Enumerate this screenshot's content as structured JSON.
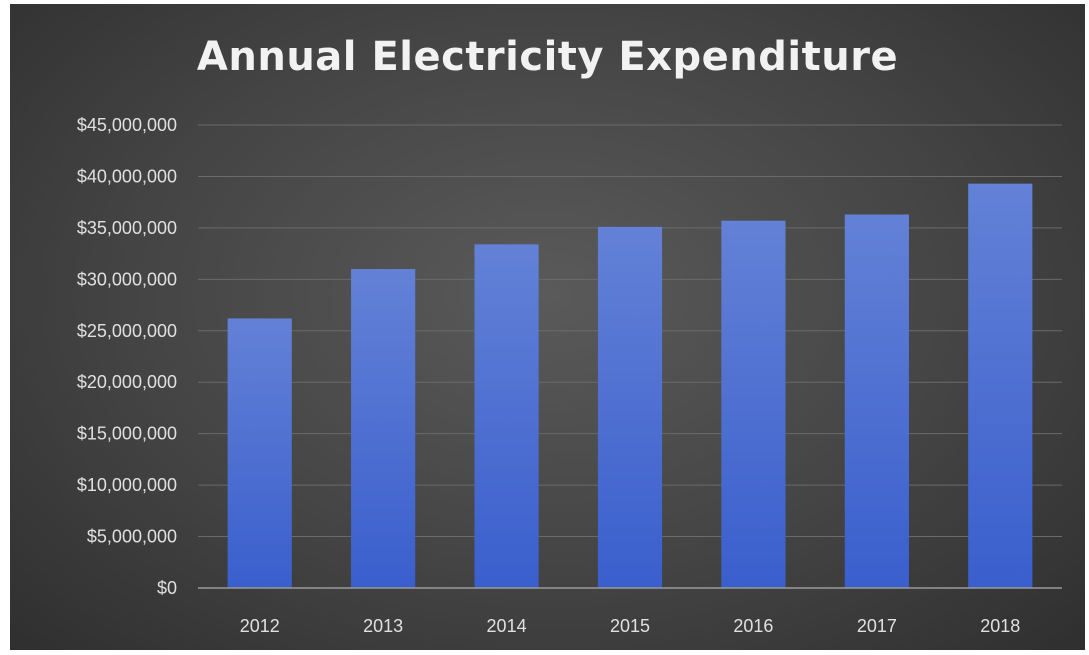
{
  "chart_data": {
    "type": "bar",
    "title": "Annual Electricity Expenditure",
    "categories": [
      "2012",
      "2013",
      "2014",
      "2015",
      "2016",
      "2017",
      "2018"
    ],
    "values": [
      26200000,
      31000000,
      33400000,
      35100000,
      35700000,
      36300000,
      39300000
    ],
    "ylim": [
      0,
      45000000
    ],
    "yticks": [
      0,
      5000000,
      10000000,
      15000000,
      20000000,
      25000000,
      30000000,
      35000000,
      40000000,
      45000000
    ],
    "ytick_labels": [
      "$0",
      "$5,000,000",
      "$10,000,000",
      "$15,000,000",
      "$20,000,000",
      "$25,000,000",
      "$30,000,000",
      "$35,000,000",
      "$40,000,000",
      "$45,000,000"
    ],
    "xlabel": "",
    "ylabel": "",
    "grid": true,
    "legend": "none",
    "colors": {
      "bar_top": "#6381d6",
      "bar_bottom": "#3a5fcd",
      "grid": "#6a6a6a",
      "axis": "#9a9a9a",
      "text": "#e0e0e0"
    }
  }
}
